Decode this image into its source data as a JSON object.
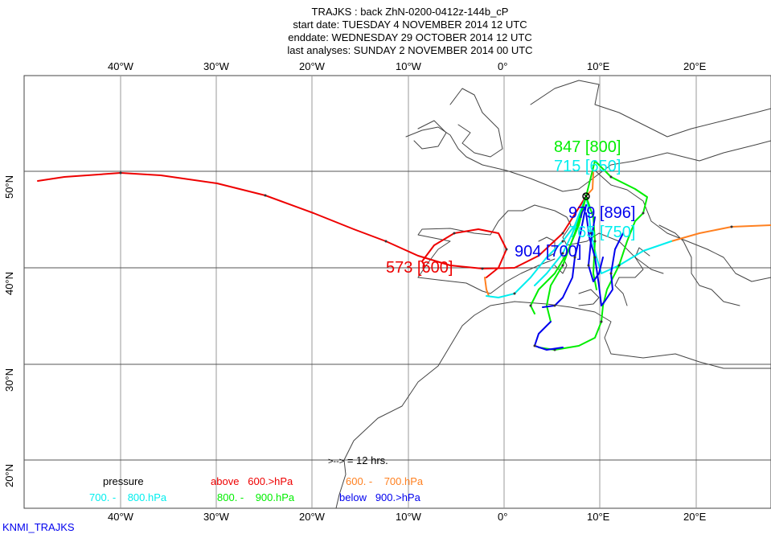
{
  "header": {
    "title": "TRAJKS : back ZhN-0200-0412z-144b_cP",
    "start_date": "start date:  TUESDAY    4 NOVEMBER  2014 12 UTC",
    "end_date": "enddate:  WEDNESDAY 29 OCTOBER   2014 12 UTC",
    "last_analyses": "last analyses:  SUNDAY     2 NOVEMBER  2014 00 UTC"
  },
  "axes": {
    "lon_labels": [
      "40°W",
      "30°W",
      "20°W",
      "10°W",
      "0°",
      "10°E",
      "20°E"
    ],
    "lat_labels": [
      "50°N",
      "40°N",
      "30°N",
      "20°N"
    ]
  },
  "trajectory_labels": [
    {
      "text": "847 [800]",
      "color": "#00ee00"
    },
    {
      "text": "715 [650]",
      "color": "#00eeee"
    },
    {
      "text": "765 [750]",
      "color": "#00eeee"
    },
    {
      "text": "979 [896]",
      "color": "#0000ee"
    },
    {
      "text": "904 [700]",
      "color": "#0000ee"
    },
    {
      "text": "573 [600]",
      "color": "#ee0000"
    }
  ],
  "legend": {
    "interval": "= 12 hrs.",
    "pressure": "pressure",
    "above_a": "above",
    "above_b": "600.>hPa",
    "r600_a": "600. -",
    "r600_b": "700.hPa",
    "r700_a": "700. -",
    "r700_b": "800.hPa",
    "r800_a": "800. -",
    "r800_b": "900.hPa",
    "below_a": "below",
    "below_b": "900.>hPa"
  },
  "colors": {
    "red": "#ee0000",
    "orange": "#ff8020",
    "cyan": "#00eeee",
    "green": "#00ee00",
    "blue": "#0000ee"
  },
  "footer": "KNMI_TRAJKS"
}
